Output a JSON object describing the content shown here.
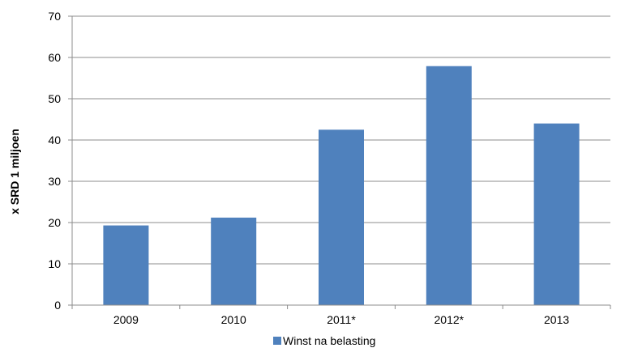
{
  "chart_data": {
    "type": "bar",
    "categories": [
      "2009",
      "2010",
      "2011*",
      "2012*",
      "2013"
    ],
    "series": [
      {
        "name": "Winst na belasting",
        "values": [
          19.3,
          21.2,
          42.5,
          57.9,
          44.0
        ],
        "color": "#4f81bd"
      }
    ],
    "ylabel": "x SRD 1 miljoen",
    "ylim": [
      0,
      70
    ],
    "yticks": [
      0,
      10,
      20,
      30,
      40,
      50,
      60,
      70
    ],
    "grid": true,
    "legend_position": "bottom",
    "colors": {
      "grid": "#8c8c8c",
      "axis": "#8c8c8c",
      "bar": "#4f81bd"
    }
  }
}
